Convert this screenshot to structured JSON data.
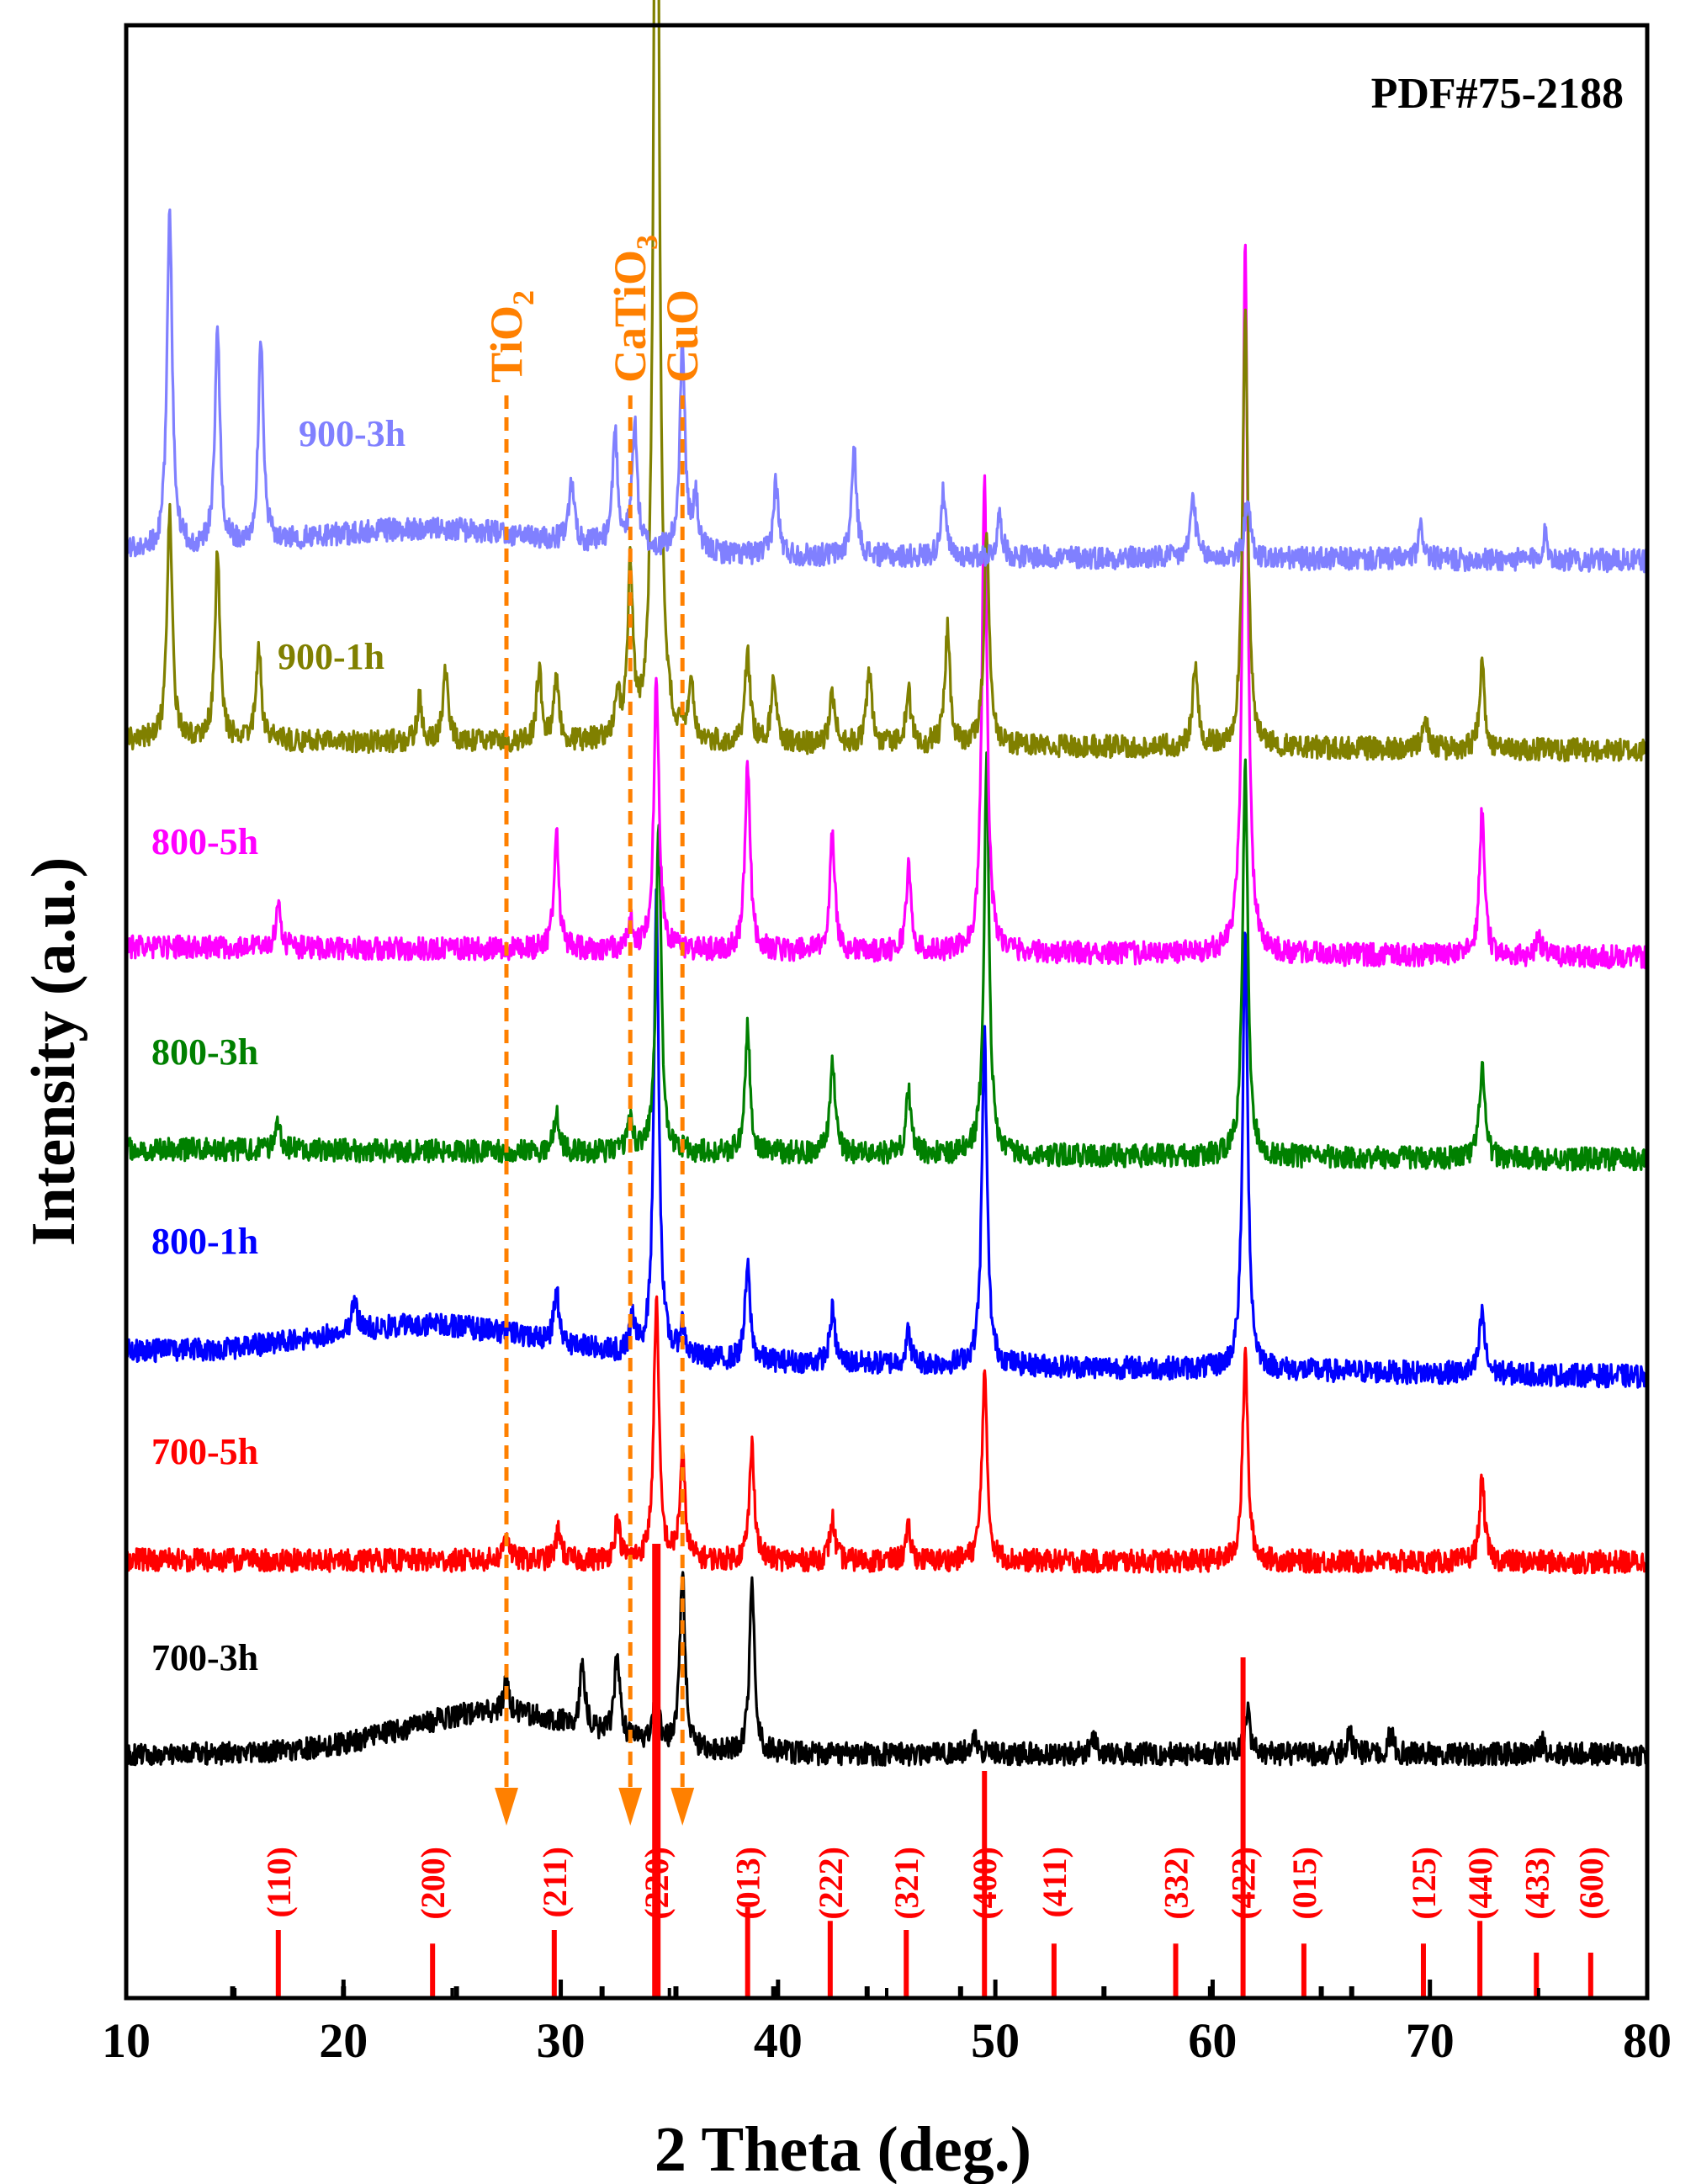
{
  "chart_data": {
    "type": "line",
    "title": "PDF#75-2188",
    "xlabel": "2 Theta (deg.)",
    "ylabel": "Intensity (a.u.)",
    "xlim": [
      10,
      80
    ],
    "x_ticks": [
      "10",
      "20",
      "30",
      "40",
      "50",
      "60",
      "70",
      "80"
    ],
    "y_axis_note": "arbitrary units, curves offset vertically, no tick labels",
    "series": [
      {
        "name": "700-3h",
        "color": "#000000",
        "baseline": 0.0,
        "slope": 0.0,
        "background_hump": {
          "center": 27.0,
          "width": 6.0,
          "height": 0.2
        },
        "peaks": [
          [
            27.5,
            0.15
          ],
          [
            31.0,
            0.3
          ],
          [
            32.6,
            0.4
          ],
          [
            34.4,
            0.25
          ],
          [
            35.6,
            0.85
          ],
          [
            38.8,
            0.8
          ],
          [
            49.0,
            0.1
          ],
          [
            54.5,
            0.08
          ],
          [
            61.6,
            0.2
          ],
          [
            66.3,
            0.1
          ],
          [
            68.2,
            0.1
          ],
          [
            75.2,
            0.06
          ]
        ]
      },
      {
        "name": "700-5h",
        "color": "#ff0000",
        "baseline": 0.93,
        "slope": -0.01,
        "peaks": [
          [
            27.5,
            0.15
          ],
          [
            29.9,
            0.15
          ],
          [
            32.6,
            0.2
          ],
          [
            34.4,
            1.25
          ],
          [
            35.6,
            0.5
          ],
          [
            38.8,
            0.55
          ],
          [
            42.5,
            0.2
          ],
          [
            46.0,
            0.15
          ],
          [
            49.5,
            0.9
          ],
          [
            61.5,
            1.0
          ],
          [
            72.4,
            0.4
          ]
        ]
      },
      {
        "name": "800-1h",
        "color": "#0000ff",
        "baseline": 1.93,
        "slope": -0.12,
        "background_hump": {
          "center": 24.0,
          "width": 7.0,
          "height": 0.15
        },
        "peaks": [
          [
            20.5,
            0.15
          ],
          [
            29.8,
            0.25
          ],
          [
            33.3,
            0.15
          ],
          [
            34.4,
            2.2
          ],
          [
            35.6,
            0.15
          ],
          [
            38.6,
            0.45
          ],
          [
            42.5,
            0.25
          ],
          [
            46.0,
            0.15
          ],
          [
            49.5,
            1.6
          ],
          [
            61.5,
            2.1
          ],
          [
            72.4,
            0.3
          ]
        ]
      },
      {
        "name": "800-3h",
        "color": "#008000",
        "baseline": 2.9,
        "slope": -0.05,
        "peaks": [
          [
            17.0,
            0.15
          ],
          [
            29.8,
            0.2
          ],
          [
            33.2,
            0.15
          ],
          [
            34.5,
            1.6
          ],
          [
            38.6,
            0.6
          ],
          [
            42.5,
            0.45
          ],
          [
            46.0,
            0.3
          ],
          [
            49.6,
            1.9
          ],
          [
            61.5,
            1.9
          ],
          [
            72.4,
            0.45
          ]
        ]
      },
      {
        "name": "800-5h",
        "color": "#ff00ff",
        "baseline": 3.87,
        "slope": -0.05,
        "peaks": [
          [
            17.0,
            0.2
          ],
          [
            29.8,
            0.55
          ],
          [
            33.2,
            0.15
          ],
          [
            34.4,
            1.3
          ],
          [
            38.6,
            0.9
          ],
          [
            42.5,
            0.55
          ],
          [
            46.0,
            0.4
          ],
          [
            49.5,
            2.3
          ],
          [
            61.5,
            3.4
          ],
          [
            72.4,
            0.7
          ],
          [
            75.0,
            0.1
          ]
        ]
      },
      {
        "name": "900-1h",
        "color": "#808000",
        "baseline": 4.86,
        "slope": -0.05,
        "peaks": [
          [
            12.0,
            1.1
          ],
          [
            14.2,
            0.9
          ],
          [
            16.1,
            0.45
          ],
          [
            23.5,
            0.2
          ],
          [
            24.7,
            0.35
          ],
          [
            29.0,
            0.35
          ],
          [
            29.8,
            0.3
          ],
          [
            32.6,
            0.2
          ],
          [
            33.2,
            0.8
          ],
          [
            34.4,
            5.8
          ],
          [
            36.0,
            0.25
          ],
          [
            38.6,
            0.45
          ],
          [
            39.8,
            0.3
          ],
          [
            42.5,
            0.25
          ],
          [
            44.2,
            0.35
          ],
          [
            46.0,
            0.25
          ],
          [
            47.8,
            0.55
          ],
          [
            49.6,
            1.05
          ],
          [
            59.2,
            0.4
          ],
          [
            61.5,
            2.1
          ],
          [
            69.8,
            0.15
          ],
          [
            72.4,
            0.4
          ]
        ]
      },
      {
        "name": "900-3h",
        "color": "#8080ff",
        "baseline": 5.76,
        "slope": -0.04,
        "background_hump": {
          "center": 24.0,
          "width": 8.0,
          "height": 0.12
        },
        "peaks": [
          [
            12.0,
            1.65
          ],
          [
            14.2,
            1.05
          ],
          [
            16.2,
            0.95
          ],
          [
            30.5,
            0.28
          ],
          [
            32.5,
            0.55
          ],
          [
            33.4,
            0.6
          ],
          [
            35.6,
            1.0
          ],
          [
            36.2,
            0.25
          ],
          [
            39.9,
            0.35
          ],
          [
            43.5,
            0.5
          ],
          [
            47.6,
            0.3
          ],
          [
            50.2,
            0.2
          ],
          [
            59.1,
            0.3
          ],
          [
            61.6,
            0.3
          ],
          [
            69.6,
            0.15
          ],
          [
            75.3,
            0.12
          ]
        ]
      }
    ],
    "phase_markers": [
      {
        "label": "TiO",
        "subscript": "2",
        "x": 27.5
      },
      {
        "label": "CaTiO",
        "subscript": "3",
        "x": 33.2
      },
      {
        "label": "CuO",
        "subscript": "",
        "x": 35.6
      }
    ],
    "reference_pattern": {
      "name": "PDF#75-2188",
      "labeled_lines": [
        {
          "hkl": "(110)",
          "x": 17.0,
          "intensity": 0.15
        },
        {
          "hkl": "(200)",
          "x": 24.1,
          "intensity": 0.12
        },
        {
          "hkl": "(211)",
          "x": 29.7,
          "intensity": 0.15
        },
        {
          "hkl": "(220)",
          "x": 34.4,
          "intensity": 1.0
        },
        {
          "hkl": "(013)",
          "x": 38.6,
          "intensity": 0.2
        },
        {
          "hkl": "(222)",
          "x": 42.4,
          "intensity": 0.17
        },
        {
          "hkl": "(321)",
          "x": 45.9,
          "intensity": 0.15
        },
        {
          "hkl": "(400)",
          "x": 49.5,
          "intensity": 0.5
        },
        {
          "hkl": "(411)",
          "x": 52.7,
          "intensity": 0.12
        },
        {
          "hkl": "(332)",
          "x": 58.3,
          "intensity": 0.12
        },
        {
          "hkl": "(422)",
          "x": 61.4,
          "intensity": 0.75
        },
        {
          "hkl": "(015)",
          "x": 64.2,
          "intensity": 0.12
        },
        {
          "hkl": "(125)",
          "x": 69.7,
          "intensity": 0.12
        },
        {
          "hkl": "(440)",
          "x": 72.3,
          "intensity": 0.17
        },
        {
          "hkl": "(433)",
          "x": 74.9,
          "intensity": 0.1
        },
        {
          "hkl": "(600)",
          "x": 77.4,
          "intensity": 0.1
        }
      ],
      "minor_lines": [
        14.9,
        20.0,
        25.2,
        31.9,
        35.3,
        39.8,
        44.1,
        48.4,
        55.0,
        59.9,
        65.0,
        66.4
      ]
    },
    "colors": {
      "axis": "#000000",
      "phase_marker": "#ff8000",
      "reference": "#ff0000",
      "minor_reference": "#000000"
    }
  }
}
